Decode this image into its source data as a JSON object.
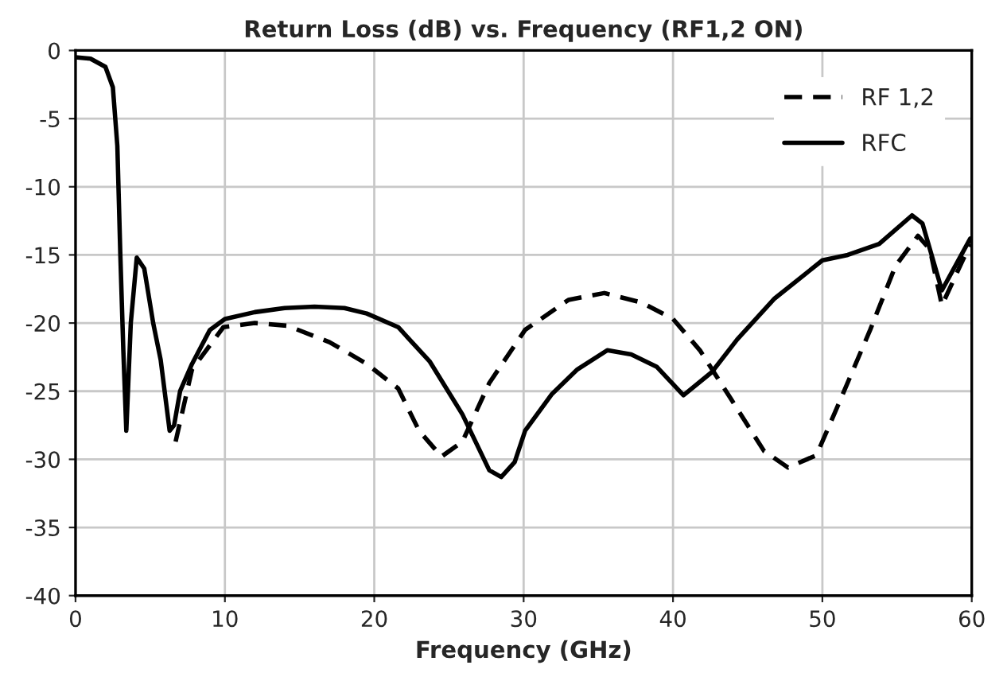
{
  "chart_data": {
    "type": "line",
    "title": "Return Loss (dB) vs. Frequency (RF1,2 ON)",
    "xlabel": "Frequency (GHz)",
    "xlim": [
      0,
      60
    ],
    "xticks": [
      0,
      10,
      20,
      30,
      40,
      50,
      60
    ],
    "ylim": [
      -40,
      0
    ],
    "yticks": [
      -40,
      -35,
      -30,
      -25,
      -20,
      -15,
      -10,
      -5,
      0
    ],
    "grid": true,
    "legend": "top right",
    "marker": "none",
    "series": [
      {
        "name": "RF 1,2",
        "color": "#000000",
        "line_style": "dashed",
        "x": [
          6.7,
          7.8,
          9.9,
          12,
          14.2,
          17,
          19.5,
          21.6,
          23,
          24.5,
          25.9,
          27.7,
          30.1,
          33,
          35.4,
          37.9,
          40,
          41.8,
          43.9,
          46.1,
          47.7,
          49.6,
          51.1,
          53.2,
          54.9,
          56.4,
          57.2,
          58,
          59.9
        ],
        "values": [
          -28.7,
          -23.4,
          -20.3,
          -20.0,
          -20.2,
          -21.4,
          -23.0,
          -24.8,
          -27.9,
          -29.8,
          -28.7,
          -24.4,
          -20.5,
          -18.3,
          -17.8,
          -18.5,
          -19.7,
          -22.0,
          -25.6,
          -29.4,
          -30.6,
          -29.7,
          -25.9,
          -20.5,
          -15.8,
          -13.6,
          -14.6,
          -18.7,
          -14.2
        ]
      },
      {
        "name": "RFC",
        "color": "#000000",
        "line_style": "solid",
        "x": [
          0,
          1,
          2,
          2.5,
          2.8,
          3.0,
          3.2,
          3.4,
          3.7,
          4.1,
          4.6,
          5.2,
          5.7,
          6.3,
          6.6,
          7.0,
          7.8,
          9,
          10,
          12,
          14,
          16,
          18,
          19.5,
          21.6,
          23.7,
          25.9,
          27.7,
          28.5,
          29.4,
          30.1,
          31.9,
          33.6,
          35.6,
          37.2,
          38.9,
          40.7,
          42.6,
          44.3,
          46.8,
          50,
          51.7,
          53.8,
          56,
          56.7,
          58,
          59.9
        ],
        "values": [
          -0.5,
          -0.6,
          -1.2,
          -2.7,
          -7,
          -15,
          -22,
          -27.9,
          -20,
          -15.2,
          -16,
          -20,
          -22.7,
          -27.9,
          -27.5,
          -25,
          -23,
          -20.5,
          -19.7,
          -19.2,
          -18.9,
          -18.8,
          -18.9,
          -19.3,
          -20.3,
          -22.8,
          -26.7,
          -30.8,
          -31.3,
          -30.2,
          -27.9,
          -25.2,
          -23.4,
          -22.0,
          -22.3,
          -23.2,
          -25.3,
          -23.6,
          -21.2,
          -18.2,
          -15.4,
          -15.0,
          -14.2,
          -12.1,
          -12.7,
          -17.6,
          -13.8
        ]
      }
    ]
  }
}
